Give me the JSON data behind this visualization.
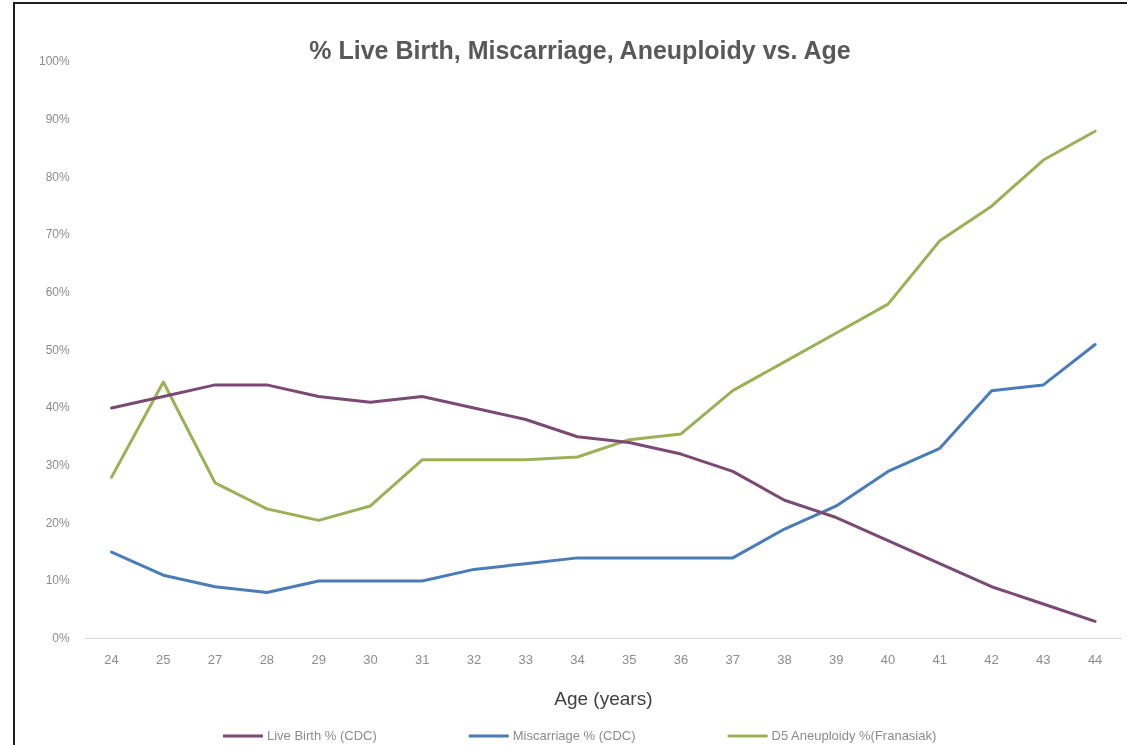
{
  "chart_data": {
    "type": "line",
    "title": "% Live Birth, Miscarriage, Aneuploidy vs. Age",
    "xlabel": "Age (years)",
    "categories": [
      "24",
      "25",
      "27",
      "28",
      "29",
      "30",
      "31",
      "32",
      "33",
      "34",
      "35",
      "36",
      "37",
      "38",
      "39",
      "40",
      "41",
      "42",
      "43",
      "44"
    ],
    "series": [
      {
        "name": "Live Birth % (CDC)",
        "color": "#7a4a74",
        "values": [
          40,
          42,
          44,
          44,
          42,
          41,
          42,
          40,
          38,
          35,
          34,
          32,
          29,
          24,
          21,
          17,
          13,
          9,
          6,
          3
        ]
      },
      {
        "name": "Miscarriage % (CDC)",
        "color": "#4a7cb8",
        "values": [
          15,
          11,
          9,
          8,
          10,
          10,
          10,
          12,
          13,
          14,
          14,
          14,
          14,
          19,
          23,
          29,
          33,
          43,
          44,
          51
        ]
      },
      {
        "name": "D5 Aneuploidy %(Franasiak)",
        "color": "#9bb057",
        "values": [
          28,
          44.5,
          27,
          22.5,
          20.5,
          23,
          31,
          31,
          31,
          31.5,
          34.5,
          35.5,
          43,
          48,
          53,
          58,
          69,
          75,
          83,
          88
        ]
      }
    ],
    "ylim": [
      0,
      100
    ],
    "yticks": [
      {
        "value": 0,
        "label": "0%"
      },
      {
        "value": 10,
        "label": "10%"
      },
      {
        "value": 20,
        "label": "20%"
      },
      {
        "value": 30,
        "label": "30%"
      },
      {
        "value": 40,
        "label": "40%"
      },
      {
        "value": 50,
        "label": "50%"
      },
      {
        "value": 60,
        "label": "60%"
      },
      {
        "value": 70,
        "label": "70%"
      },
      {
        "value": 80,
        "label": "80%"
      },
      {
        "value": 90,
        "label": "90%"
      },
      {
        "value": 100,
        "label": "100%"
      }
    ],
    "legend": "bottom"
  }
}
